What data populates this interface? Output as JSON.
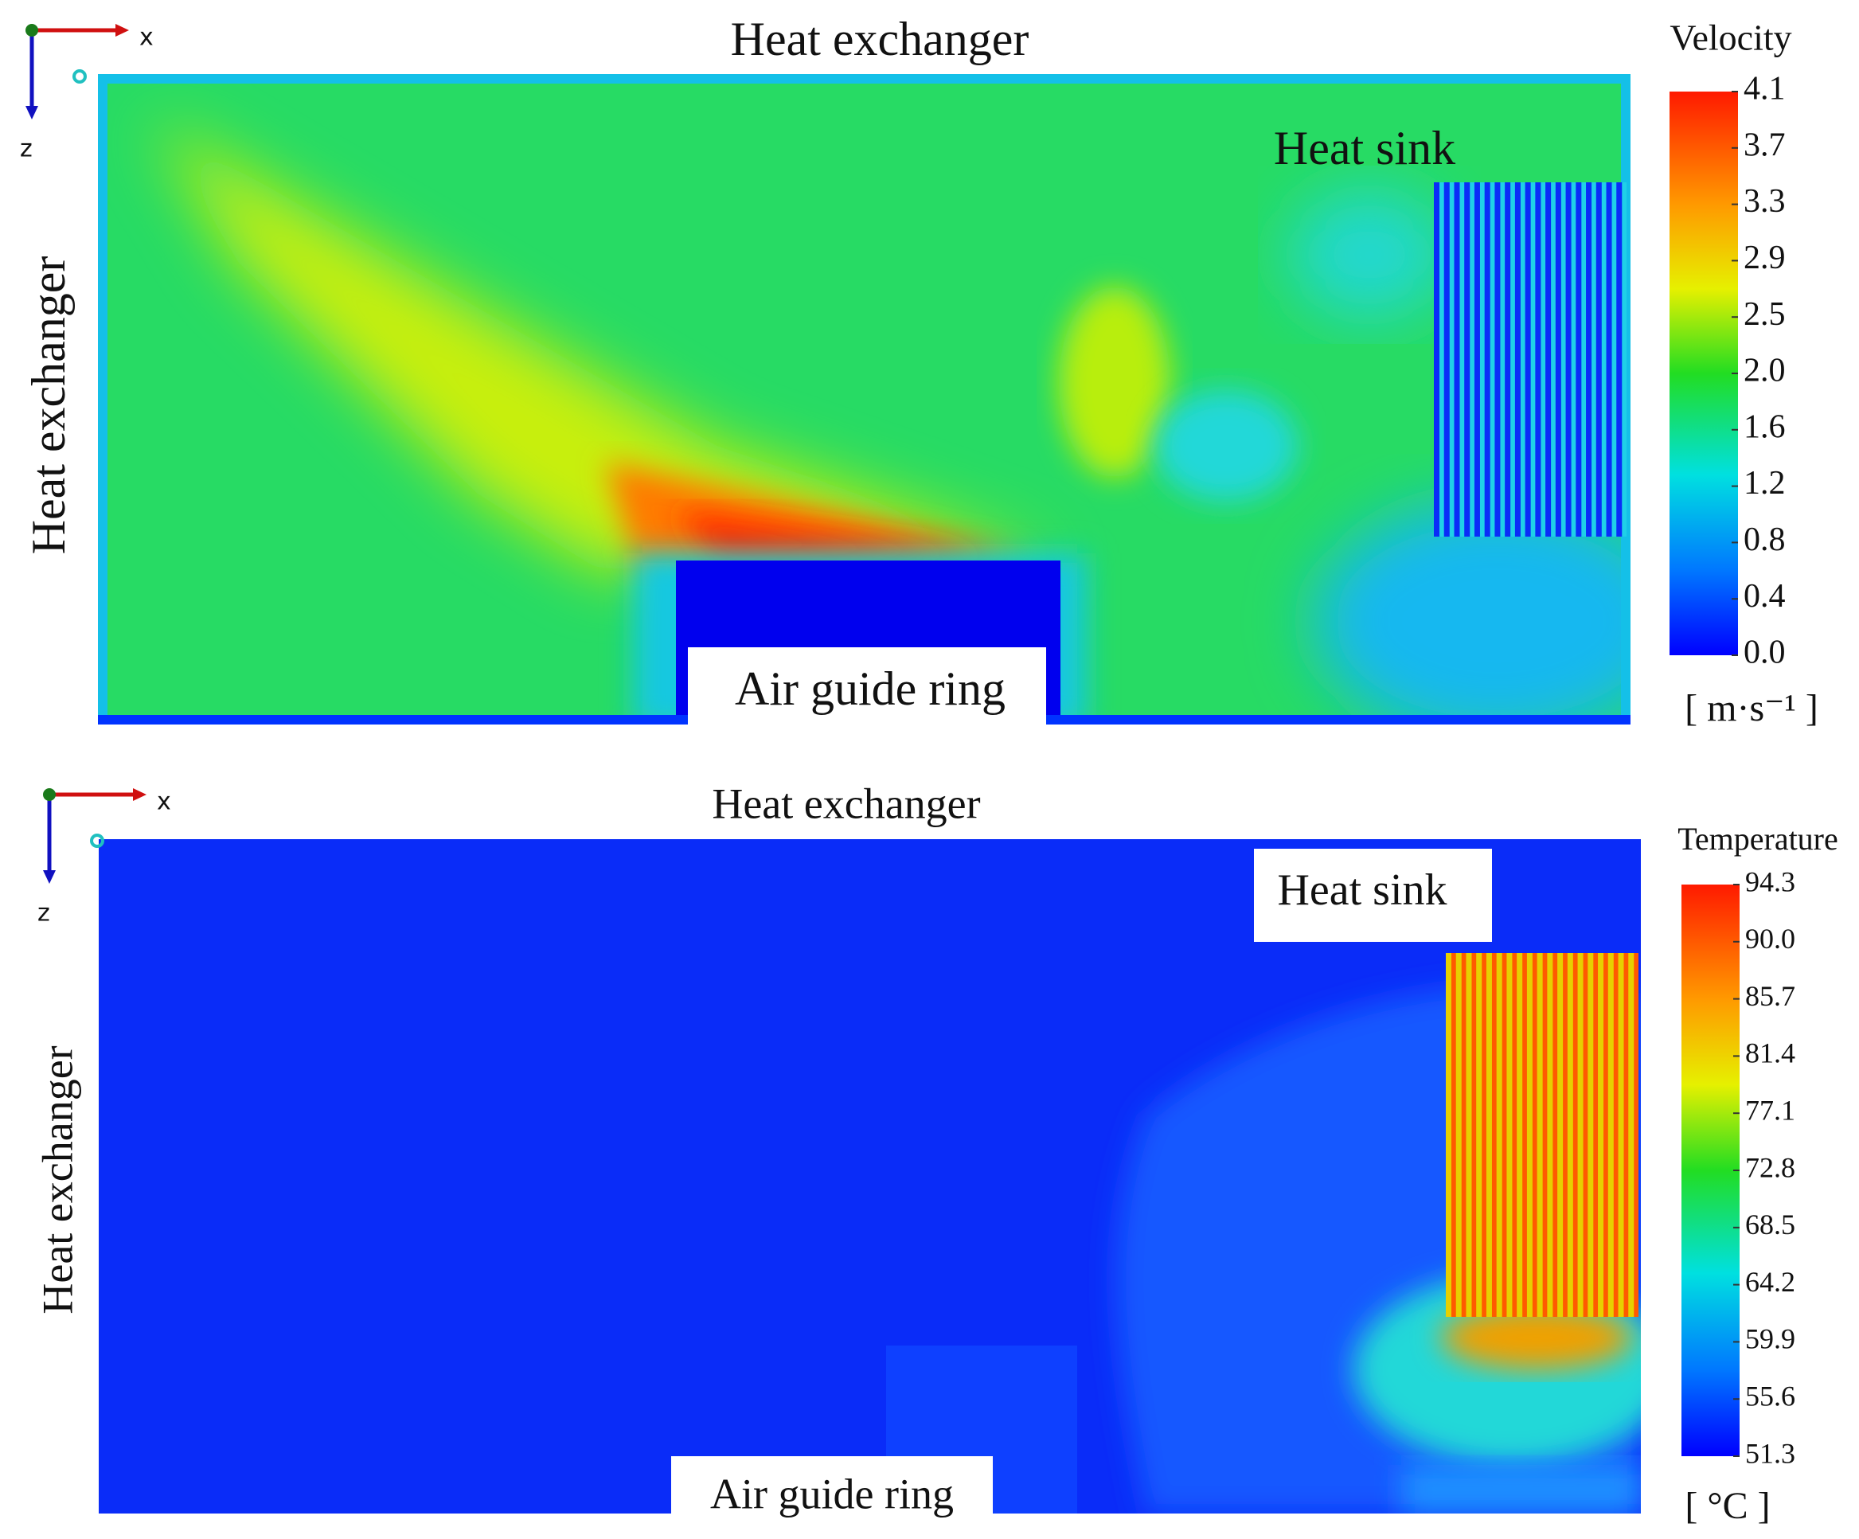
{
  "axes": {
    "x": "x",
    "z": "z"
  },
  "panels": [
    {
      "top_label": "Heat exchanger",
      "left_label": "Heat exchanger",
      "heat_sink_label": "Heat sink",
      "ring_label": "Air guide ring",
      "colorbar": {
        "title": "Velocity",
        "ticks": [
          "4.1",
          "3.7",
          "3.3",
          "2.9",
          "2.5",
          "2.0",
          "1.6",
          "1.2",
          "0.8",
          "0.4",
          "0.0"
        ],
        "unit": "[ m·s⁻¹ ]"
      }
    },
    {
      "top_label": "Heat exchanger",
      "left_label": "Heat exchanger",
      "heat_sink_label": "Heat sink",
      "ring_label": "Air guide ring",
      "colorbar": {
        "title": "Temperature",
        "ticks": [
          "94.3",
          "90.0",
          "85.7",
          "81.4",
          "77.1",
          "72.8",
          "68.5",
          "64.2",
          "59.9",
          "55.6",
          "51.3"
        ],
        "unit": "[ °C ]"
      }
    }
  ]
}
